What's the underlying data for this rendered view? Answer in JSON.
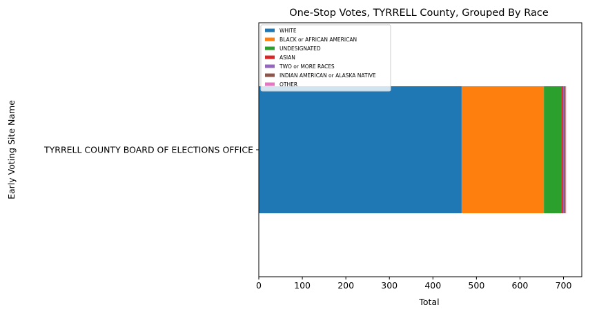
{
  "chart_data": {
    "type": "bar",
    "orientation": "horizontal",
    "stacked": true,
    "title": "One-Stop Votes, TYRRELL County, Grouped By Race",
    "xlabel": "Total",
    "ylabel": "Early Voting Site Name",
    "categories": [
      "TYRRELL COUNTY BOARD OF ELECTIONS OFFICE"
    ],
    "xlim": [
      0,
      742
    ],
    "xticks": [
      0,
      100,
      200,
      300,
      400,
      500,
      600,
      700
    ],
    "legend_position": "top-left",
    "grid": false,
    "series": [
      {
        "name": "WHITE",
        "values": [
          466
        ],
        "color": "#1f77b4"
      },
      {
        "name": "BLACK or AFRICAN AMERICAN",
        "values": [
          189
        ],
        "color": "#ff7f0e"
      },
      {
        "name": "UNDESIGNATED",
        "values": [
          41
        ],
        "color": "#2ca02c"
      },
      {
        "name": "ASIAN",
        "values": [
          3
        ],
        "color": "#d62728"
      },
      {
        "name": "TWO or MORE RACES",
        "values": [
          2
        ],
        "color": "#9467bd"
      },
      {
        "name": "INDIAN AMERICAN or ALASKA NATIVE",
        "values": [
          3
        ],
        "color": "#8c564b"
      },
      {
        "name": "OTHER",
        "values": [
          2
        ],
        "color": "#e377c2"
      }
    ]
  }
}
